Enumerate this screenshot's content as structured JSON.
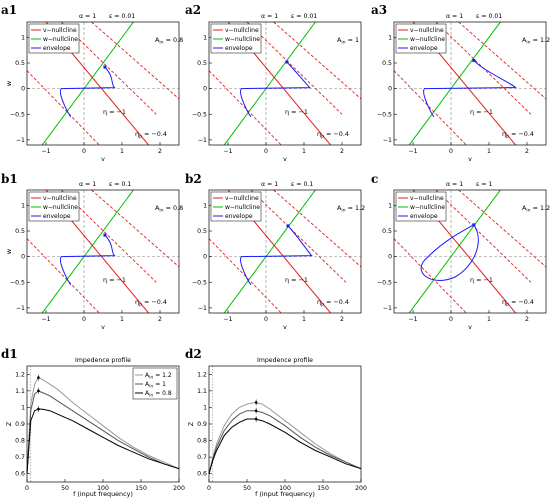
{
  "figure": {
    "nullcline_legend": [
      "v−nullcline",
      "w−nullcline",
      "envelope"
    ]
  },
  "chart_data": [
    {
      "id": "a1",
      "type": "line",
      "label": "a1",
      "title_alpha": "α = 1",
      "title_eps": "ε = 0.01",
      "amp_label": "A",
      "amp_sub": "in",
      "amp_value": "= 0.8",
      "amp": 0.8,
      "xlabel": "v",
      "ylabel": "w",
      "xlim": [
        -1.5,
        2.5
      ],
      "ylim": [
        -1.1,
        1.3
      ],
      "xticks": [
        -1,
        0,
        1,
        2
      ],
      "yticks": [
        -1,
        -0.5,
        0,
        0.5,
        1
      ],
      "eta_label": "η = −1",
      "eta_p_label": "η",
      "eta_p_sub": "p",
      "eta_p_value": " = −0.4",
      "vmax": 0.8,
      "peak": [
        0.55,
        0.42
      ],
      "vmin": -0.6,
      "grid": false,
      "legend_position": "upper-left"
    },
    {
      "id": "a2",
      "type": "line",
      "label": "a2",
      "title_alpha": "α = 1",
      "title_eps": "ε = 0.01",
      "amp_label": "A",
      "amp_sub": "in",
      "amp_value": "= 1",
      "amp": 1.0,
      "xlabel": "v",
      "ylabel": "",
      "xlim": [
        -1.5,
        2.5
      ],
      "ylim": [
        -1.1,
        1.3
      ],
      "xticks": [
        -1,
        0,
        1,
        2
      ],
      "yticks": [
        -1,
        -0.5,
        0,
        0.5,
        1
      ],
      "eta_label": "η = −1",
      "eta_p_label": "η",
      "eta_p_sub": "p",
      "eta_p_value": " = −0.4",
      "vmax": 1.15,
      "peak": [
        0.55,
        0.52
      ],
      "vmin": -0.65,
      "grid": false,
      "legend_position": "upper-left"
    },
    {
      "id": "a3",
      "type": "line",
      "label": "a3",
      "title_alpha": "α = 1",
      "title_eps": "ε = 0.01",
      "amp_label": "A",
      "amp_sub": "in",
      "amp_value": "= 1.2",
      "amp": 1.2,
      "xlabel": "v",
      "ylabel": "",
      "xlim": [
        -1.5,
        2.5
      ],
      "ylim": [
        -1.1,
        1.3
      ],
      "xticks": [
        -1,
        0,
        1,
        2
      ],
      "yticks": [
        -1,
        -0.5,
        0,
        0.5,
        1
      ],
      "eta_label": "η = −1",
      "eta_p_label": "η",
      "eta_p_sub": "p",
      "eta_p_value": " = −0.4",
      "vmax": 1.7,
      "peak": [
        0.6,
        0.55
      ],
      "vmin": -0.7,
      "grid": false,
      "legend_position": "upper-left"
    },
    {
      "id": "b1",
      "type": "line",
      "label": "b1",
      "title_alpha": "α = 1",
      "title_eps": "ε = 0.1",
      "amp_label": "A",
      "amp_sub": "in",
      "amp_value": "= 0.8",
      "amp": 0.8,
      "xlabel": "v",
      "ylabel": "w",
      "xlim": [
        -1.5,
        2.5
      ],
      "ylim": [
        -1.1,
        1.3
      ],
      "xticks": [
        -1,
        0,
        1,
        2
      ],
      "yticks": [
        -1,
        -0.5,
        0,
        0.5,
        1
      ],
      "eta_label": "η = −1",
      "eta_p_label": "η",
      "eta_p_sub": "p",
      "eta_p_value": " = −0.4",
      "vmax": 0.8,
      "peak": [
        0.55,
        0.42
      ],
      "vmin": -0.6,
      "grid": false,
      "legend_position": "upper-left"
    },
    {
      "id": "b2",
      "type": "line",
      "label": "b2",
      "title_alpha": "α = 1",
      "title_eps": "ε = 0.1",
      "amp_label": "A",
      "amp_sub": "in",
      "amp_value": "= 1.2",
      "amp": 1.2,
      "xlabel": "v",
      "ylabel": "",
      "xlim": [
        -1.5,
        2.5
      ],
      "ylim": [
        -1.1,
        1.3
      ],
      "xticks": [
        -1,
        0,
        1,
        2
      ],
      "yticks": [
        -1,
        -0.5,
        0,
        0.5,
        1
      ],
      "eta_label": "η = −1",
      "eta_p_label": "η",
      "eta_p_sub": "p",
      "eta_p_value": " = −0.4",
      "vmax": 1.2,
      "peak": [
        0.58,
        0.6
      ],
      "vmin": -0.65,
      "grid": false,
      "legend_position": "upper-left"
    },
    {
      "id": "c",
      "type": "line",
      "label": "c",
      "title_alpha": "α = 1",
      "title_eps": "ε = 1",
      "amp_label": "A",
      "amp_sub": "in",
      "amp_value": "= 1.2",
      "amp": 1.2,
      "xlabel": "v",
      "ylabel": "",
      "xlim": [
        -1.5,
        2.5
      ],
      "ylim": [
        -1.1,
        1.3
      ],
      "xticks": [
        -1,
        0,
        1,
        2
      ],
      "yticks": [
        -1,
        -0.5,
        0,
        0.5,
        1
      ],
      "eta_label": "η = −1",
      "eta_p_label": "η",
      "eta_p_sub": "p",
      "eta_p_value": " = −0.4",
      "peak": [
        0.6,
        0.62
      ],
      "grid": false,
      "legend_position": "upper-left"
    },
    {
      "id": "d1",
      "type": "line",
      "label": "d1",
      "title": "Impedence profile",
      "xlabel": "f  (input frequency)",
      "ylabel": "Z",
      "xlim": [
        0,
        200
      ],
      "ylim": [
        0.55,
        1.25
      ],
      "xticks": [
        0,
        50,
        100,
        150,
        200
      ],
      "yticks": [
        0.6,
        0.7,
        0.8,
        0.9,
        1,
        1.1,
        1.2
      ],
      "legend_position": "upper-right",
      "x": [
        0,
        5,
        10,
        15,
        20,
        30,
        40,
        50,
        60,
        80,
        100,
        120,
        140,
        160,
        180,
        200
      ],
      "series": [
        {
          "name_sym": "A",
          "name_sub": "in",
          "name_val": " = 1.2",
          "color": "#9a9a9a",
          "values": [
            0.6,
            1.02,
            1.14,
            1.18,
            1.17,
            1.14,
            1.11,
            1.07,
            1.03,
            0.96,
            0.89,
            0.82,
            0.76,
            0.71,
            0.67,
            0.63
          ]
        },
        {
          "name_sym": "A",
          "name_sub": "in",
          "name_val": " = 1",
          "color": "#555555",
          "values": [
            0.6,
            0.98,
            1.08,
            1.1,
            1.09,
            1.07,
            1.04,
            1.01,
            0.98,
            0.92,
            0.86,
            0.8,
            0.75,
            0.7,
            0.66,
            0.63
          ]
        },
        {
          "name_sym": "A",
          "name_sub": "in",
          "name_val": " = 0.8",
          "color": "#000000",
          "values": [
            0.6,
            0.92,
            0.98,
            0.99,
            0.99,
            0.98,
            0.96,
            0.94,
            0.92,
            0.87,
            0.82,
            0.77,
            0.73,
            0.69,
            0.66,
            0.63
          ]
        }
      ],
      "peaks": [
        {
          "x": 15,
          "y": 1.18
        },
        {
          "x": 15,
          "y": 1.1
        },
        {
          "x": 15,
          "y": 0.99
        }
      ]
    },
    {
      "id": "d2",
      "type": "line",
      "label": "d2",
      "title": "Impedence profile",
      "xlabel": "f  (input frequency)",
      "ylabel": "Z",
      "xlim": [
        0,
        200
      ],
      "ylim": [
        0.55,
        1.25
      ],
      "xticks": [
        0,
        50,
        100,
        150,
        200
      ],
      "yticks": [
        0.6,
        0.7,
        0.8,
        0.9,
        1,
        1.1,
        1.2
      ],
      "x": [
        0,
        5,
        10,
        20,
        30,
        40,
        50,
        60,
        70,
        80,
        100,
        120,
        140,
        160,
        180,
        200
      ],
      "series": [
        {
          "color": "#9a9a9a",
          "values": [
            0.6,
            0.7,
            0.78,
            0.89,
            0.96,
            1.0,
            1.02,
            1.03,
            1.02,
            0.99,
            0.92,
            0.85,
            0.78,
            0.72,
            0.67,
            0.63
          ]
        },
        {
          "color": "#555555",
          "values": [
            0.6,
            0.69,
            0.76,
            0.86,
            0.92,
            0.96,
            0.98,
            0.98,
            0.97,
            0.95,
            0.89,
            0.82,
            0.76,
            0.71,
            0.67,
            0.63
          ]
        },
        {
          "color": "#000000",
          "values": [
            0.6,
            0.68,
            0.74,
            0.83,
            0.88,
            0.91,
            0.93,
            0.93,
            0.92,
            0.9,
            0.85,
            0.79,
            0.74,
            0.7,
            0.66,
            0.63
          ]
        }
      ],
      "peaks": [
        {
          "x": 62,
          "y": 1.03
        },
        {
          "x": 62,
          "y": 0.98
        },
        {
          "x": 62,
          "y": 0.93
        }
      ]
    }
  ]
}
